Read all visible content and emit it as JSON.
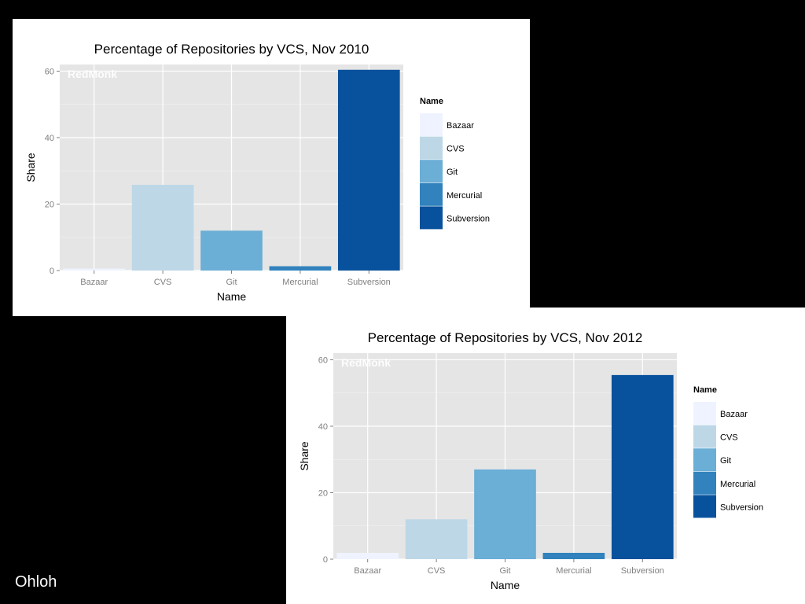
{
  "source_label": "Ohloh",
  "watermark": "RedMonk",
  "chart_data": [
    {
      "type": "bar",
      "title": "Percentage of Repositories by VCS, Nov 2010",
      "xlabel": "Name",
      "ylabel": "Share",
      "ylim": [
        0,
        62
      ],
      "yticks": [
        0,
        20,
        40,
        60
      ],
      "categories": [
        "Bazaar",
        "CVS",
        "Git",
        "Mercurial",
        "Subversion"
      ],
      "values": [
        0.6,
        25.8,
        12.0,
        1.3,
        60.4
      ],
      "grid": true,
      "legend": {
        "title": "Name",
        "position": "right",
        "entries": [
          "Bazaar",
          "CVS",
          "Git",
          "Mercurial",
          "Subversion"
        ]
      },
      "colors": [
        "#eff3ff",
        "#bdd7e7",
        "#6baed6",
        "#3182bd",
        "#08519c"
      ]
    },
    {
      "type": "bar",
      "title": "Percentage of Repositories by VCS, Nov 2012",
      "xlabel": "Name",
      "ylabel": "Share",
      "ylim": [
        0,
        62
      ],
      "yticks": [
        0,
        20,
        40,
        60
      ],
      "categories": [
        "Bazaar",
        "CVS",
        "Git",
        "Mercurial",
        "Subversion"
      ],
      "values": [
        1.9,
        12.0,
        27.0,
        1.9,
        55.4
      ],
      "grid": true,
      "legend": {
        "title": "Name",
        "position": "right",
        "entries": [
          "Bazaar",
          "CVS",
          "Git",
          "Mercurial",
          "Subversion"
        ]
      },
      "colors": [
        "#eff3ff",
        "#bdd7e7",
        "#6baed6",
        "#3182bd",
        "#08519c"
      ]
    }
  ]
}
